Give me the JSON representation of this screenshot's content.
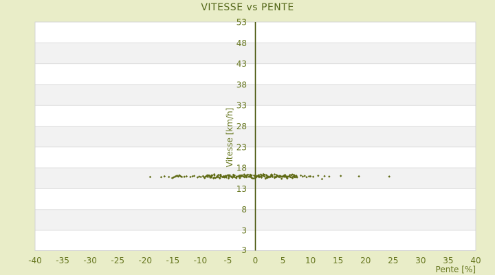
{
  "page": {
    "background_color": "#e9edc8"
  },
  "chart_data": {
    "type": "scatter",
    "title": "VITESSE vs PENTE",
    "xlabel": "Pente [%]",
    "ylabel": "Vitesse [km/h]",
    "x_ticks": [
      -40,
      -35,
      -30,
      -25,
      -20,
      -15,
      -10,
      -5,
      0,
      5,
      10,
      15,
      20,
      25,
      30,
      35,
      40
    ],
    "y_ticks": [
      53,
      48,
      43,
      38,
      33,
      28,
      23,
      18,
      13,
      8,
      3
    ],
    "y_axis_bottom_label": "3",
    "xlim": [
      -40,
      40
    ],
    "ylim": [
      3,
      53
    ],
    "grid": "horizontal-bands",
    "legend": null,
    "colors": {
      "text": "#66761f",
      "title": "#55691b",
      "band_white": "#ffffff",
      "band_gray": "#f2f2f2",
      "gridline": "#dedede",
      "plot_border": "#d4d4d4",
      "zero_axis_line": "#4b580f",
      "marker": "#5f6a14"
    },
    "marker": {
      "shape": "diamond",
      "size": 3
    },
    "points": [
      [
        -19.1,
        15.8
      ],
      [
        -17.1,
        15.75
      ],
      [
        -16.5,
        15.95
      ],
      [
        -15.7,
        15.8
      ],
      [
        -15.1,
        15.55
      ],
      [
        -14.85,
        15.7
      ],
      [
        -14.6,
        15.85
      ],
      [
        -14.4,
        16.0
      ],
      [
        -14.2,
        16.1
      ],
      [
        -14.0,
        15.9
      ],
      [
        -13.8,
        16.2
      ],
      [
        -13.6,
        16.0
      ],
      [
        -13.35,
        15.8
      ],
      [
        -12.9,
        15.85
      ],
      [
        -12.5,
        15.95
      ],
      [
        -11.8,
        15.8
      ],
      [
        -11.4,
        15.95
      ],
      [
        -11.1,
        16.05
      ],
      [
        -10.5,
        15.7
      ],
      [
        -10.2,
        15.9
      ],
      [
        -9.9,
        15.8
      ],
      [
        -9.5,
        16.0
      ],
      [
        8.25,
        16.15
      ],
      [
        8.6,
        15.9
      ],
      [
        8.95,
        16.05
      ],
      [
        9.3,
        15.75
      ],
      [
        9.75,
        15.95
      ],
      [
        10.0,
        15.95
      ],
      [
        10.5,
        15.85
      ],
      [
        11.4,
        16.1
      ],
      [
        12.1,
        15.3
      ],
      [
        12.55,
        16.0
      ],
      [
        13.4,
        15.9
      ],
      [
        15.5,
        16.05
      ],
      [
        18.8,
        15.95
      ],
      [
        24.3,
        15.9
      ]
    ],
    "dense_band": {
      "x_min": -9.2,
      "x_max": 7.6,
      "count": 170,
      "y_center": 15.92,
      "y_jitter": 0.62,
      "x_jitter": 0.18,
      "seed": 42
    }
  }
}
